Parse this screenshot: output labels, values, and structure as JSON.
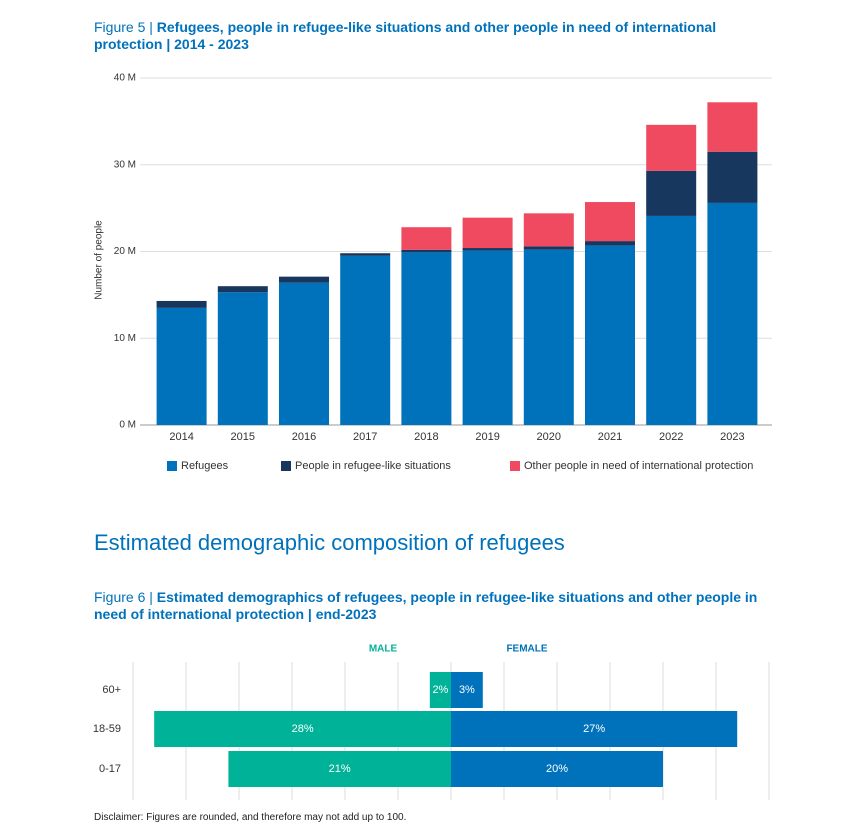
{
  "heading": "Estimated demographic composition of refugees",
  "disclaimer": "Disclaimer: Figures are rounded, and therefore may not add up to 100.",
  "chart_data": [
    {
      "type": "stacked-bar",
      "figure": "Figure 5 |",
      "title": "Refugees, people in refugee-like situations and other people in need of international protection | 2014 - 2023",
      "ylabel": "Number of people",
      "categories": [
        "2014",
        "2015",
        "2016",
        "2017",
        "2018",
        "2019",
        "2020",
        "2021",
        "2022",
        "2023"
      ],
      "series": [
        {
          "name": "Refugees",
          "color": "#0072bc",
          "values": [
            13.5,
            15.3,
            16.4,
            19.5,
            19.9,
            20.1,
            20.2,
            20.7,
            24.1,
            25.6
          ]
        },
        {
          "name": "People in refugee-like situations",
          "color": "#18375f",
          "values": [
            0.8,
            0.7,
            0.7,
            0.3,
            0.3,
            0.3,
            0.4,
            0.5,
            5.2,
            5.9
          ]
        },
        {
          "name": "Other people in need of international protection",
          "color": "#ef4a60",
          "values": [
            0,
            0,
            0,
            0,
            2.6,
            3.5,
            3.8,
            4.5,
            5.3,
            5.7
          ]
        }
      ],
      "ylim": [
        0,
        40
      ],
      "yticks": [
        {
          "value": 0,
          "label": "0 M"
        },
        {
          "value": 10,
          "label": "10 M"
        },
        {
          "value": 20,
          "label": "20 M"
        },
        {
          "value": 30,
          "label": "30 M"
        },
        {
          "value": 40,
          "label": "40 M"
        }
      ],
      "grid": true
    },
    {
      "type": "butterfly-bar",
      "figure": "Figure 6 |",
      "title": "Estimated demographics of refugees, people in refugee-like situations and other people in need of international protection | end-2023",
      "categories": [
        "60+",
        "18-59",
        "0-17"
      ],
      "series": [
        {
          "name": "MALE",
          "color": "#00b398",
          "values": [
            2,
            28,
            21
          ],
          "value_labels": [
            "2%",
            "28%",
            "21%"
          ]
        },
        {
          "name": "FEMALE",
          "color": "#0072bc",
          "values": [
            3,
            27,
            20
          ],
          "value_labels": [
            "3%",
            "27%",
            "20%"
          ]
        }
      ],
      "xlim": [
        -30,
        30
      ],
      "xticks": [
        -30,
        -25,
        -20,
        -15,
        -10,
        -5,
        0,
        5,
        10,
        15,
        20,
        25,
        30
      ],
      "grid": true
    }
  ]
}
